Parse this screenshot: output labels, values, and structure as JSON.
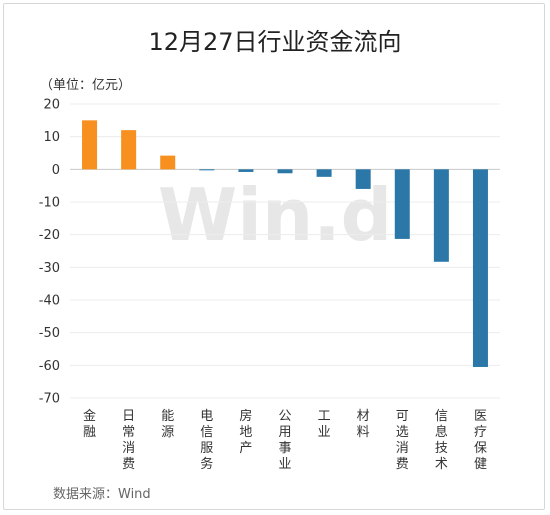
{
  "chart_data": {
    "type": "bar",
    "title": "12月27日行业资金流向",
    "unit_label": "（单位：亿元）",
    "source": "数据来源：Wind",
    "watermark": "Win.d",
    "categories": [
      "金融",
      "日常消费",
      "能源",
      "电信服务",
      "房地产",
      "公用事业",
      "工业",
      "材料",
      "可选消费",
      "信息技术",
      "医疗保健"
    ],
    "values": [
      15.0,
      12.0,
      4.2,
      -0.2,
      -0.8,
      -1.2,
      -2.3,
      -6.0,
      -21.3,
      -28.3,
      -60.5
    ],
    "ylim": [
      -70,
      20
    ],
    "yticks": [
      20,
      10,
      0,
      -10,
      -20,
      -30,
      -40,
      -50,
      -60,
      -70
    ],
    "grid": true,
    "colors": {
      "positive": "#f7901e",
      "negative": "#2a77a8"
    }
  }
}
